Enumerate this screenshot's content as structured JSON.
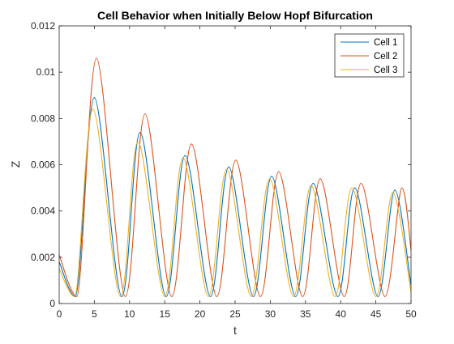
{
  "chart_data": {
    "type": "line",
    "title": "Cell Behavior when Initially Below Hopf Bifurcation",
    "xlabel": "t",
    "ylabel": "Z",
    "xlim": [
      0,
      50
    ],
    "ylim": [
      0,
      0.012
    ],
    "xticks": [
      0,
      5,
      10,
      15,
      20,
      25,
      30,
      35,
      40,
      45,
      50
    ],
    "xtick_labels": [
      "0",
      "5",
      "10",
      "15",
      "20",
      "25",
      "30",
      "35",
      "40",
      "45",
      "50"
    ],
    "yticks": [
      0,
      0.002,
      0.004,
      0.006,
      0.008,
      0.01,
      0.012
    ],
    "ytick_labels": [
      "0",
      "0.002",
      "0.004",
      "0.006",
      "0.008",
      "0.01",
      "0.012"
    ],
    "grid": false,
    "legend_position": "top-right",
    "series": [
      {
        "name": "Cell 1",
        "color": "#0072BD",
        "start": 0.0018,
        "end": 0.0008,
        "peaks": [
          [
            5.0,
            0.0089
          ],
          [
            11.5,
            0.0074
          ],
          [
            17.9,
            0.0064
          ],
          [
            24.1,
            0.0059
          ],
          [
            30.2,
            0.0055
          ],
          [
            36.1,
            0.0052
          ],
          [
            42.0,
            0.005
          ],
          [
            47.7,
            0.0049
          ]
        ],
        "troughs": [
          [
            2.3,
            0.0003
          ],
          [
            8.9,
            0.0003
          ],
          [
            15.2,
            0.0003
          ],
          [
            21.5,
            0.0003
          ],
          [
            27.6,
            0.0003
          ],
          [
            33.6,
            0.0003
          ],
          [
            39.6,
            0.0003
          ],
          [
            45.3,
            0.0003
          ]
        ]
      },
      {
        "name": "Cell 2",
        "color": "#D95319",
        "start": 0.0021,
        "end": 0.0023,
        "peaks": [
          [
            5.3,
            0.0106
          ],
          [
            12.2,
            0.0082
          ],
          [
            18.8,
            0.0069
          ],
          [
            25.1,
            0.0062
          ],
          [
            31.2,
            0.0057
          ],
          [
            37.1,
            0.0054
          ],
          [
            42.9,
            0.0052
          ],
          [
            48.7,
            0.005
          ]
        ],
        "troughs": [
          [
            2.5,
            0.0003
          ],
          [
            9.4,
            0.0003
          ],
          [
            16.0,
            0.0003
          ],
          [
            22.4,
            0.0003
          ],
          [
            28.6,
            0.0003
          ],
          [
            34.6,
            0.0003
          ],
          [
            40.5,
            0.0003
          ],
          [
            46.3,
            0.0003
          ]
        ]
      },
      {
        "name": "Cell 3",
        "color": "#EDB120",
        "start": 0.0015,
        "end": 0.0005,
        "peaks": [
          [
            4.8,
            0.0084
          ],
          [
            11.2,
            0.007
          ],
          [
            17.6,
            0.0063
          ],
          [
            23.8,
            0.0058
          ],
          [
            29.9,
            0.0054
          ],
          [
            35.8,
            0.0051
          ],
          [
            41.6,
            0.005
          ],
          [
            47.4,
            0.0048
          ]
        ],
        "troughs": [
          [
            2.2,
            0.0003
          ],
          [
            8.7,
            0.0003
          ],
          [
            15.0,
            0.0003
          ],
          [
            21.2,
            0.0003
          ],
          [
            27.3,
            0.0003
          ],
          [
            33.3,
            0.0003
          ],
          [
            39.2,
            0.0003
          ],
          [
            45.0,
            0.0003
          ]
        ]
      }
    ]
  }
}
